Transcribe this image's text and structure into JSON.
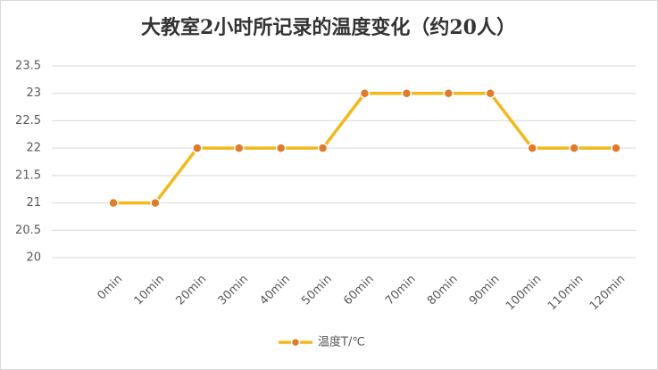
{
  "chart_data": {
    "type": "line",
    "title": "大教室2小时所记录的温度变化（约20人）",
    "categories": [
      "0min",
      "10min",
      "20min",
      "30min",
      "40min",
      "50min",
      "60min",
      "70min",
      "80min",
      "90min",
      "100min",
      "110min",
      "120min"
    ],
    "series": [
      {
        "name": "温度T/℃",
        "color": "#f2b81c",
        "marker_color": "#e07b2a",
        "values": [
          21,
          21,
          22,
          22,
          22,
          22,
          23,
          23,
          23,
          23,
          22,
          22,
          22
        ]
      }
    ],
    "ylim": [
      20,
      23.5
    ],
    "yticks": [
      20,
      20.5,
      21,
      21.5,
      22,
      22.5,
      23,
      23.5
    ],
    "grid": true,
    "legend": "bottom"
  }
}
